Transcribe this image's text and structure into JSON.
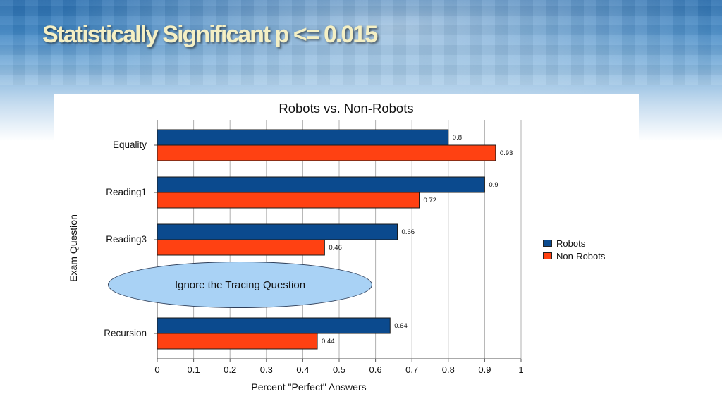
{
  "slide": {
    "title": "Statistically Significant p <= 0.015"
  },
  "annotation": {
    "text": "Ignore the Tracing Question"
  },
  "colors": {
    "robots": "#0b4a8e",
    "non_robots": "#ff4112",
    "grid": "#b0b0b0"
  },
  "chart_data": {
    "type": "bar",
    "orientation": "horizontal",
    "title": "Robots vs. Non-Robots",
    "xlabel": "Percent \"Perfect\" Answers",
    "ylabel": "Exam Question",
    "categories": [
      "Equality",
      "Reading1",
      "Reading3",
      "Recursion"
    ],
    "series": [
      {
        "name": "Robots",
        "values": [
          0.8,
          0.9,
          0.66,
          0.64
        ],
        "labels": [
          "0.8",
          "0.9",
          "0.66",
          "0.64"
        ]
      },
      {
        "name": "Non-Robots",
        "values": [
          0.93,
          0.72,
          0.46,
          0.44
        ],
        "labels": [
          "0.93",
          "0.72",
          "0.46",
          "0.44"
        ]
      }
    ],
    "xlim": [
      0,
      1
    ],
    "xticks": [
      "0",
      "0.1",
      "0.2",
      "0.3",
      "0.4",
      "0.5",
      "0.6",
      "0.7",
      "0.8",
      "0.9",
      "1"
    ],
    "grid": true,
    "legend_position": "right"
  }
}
